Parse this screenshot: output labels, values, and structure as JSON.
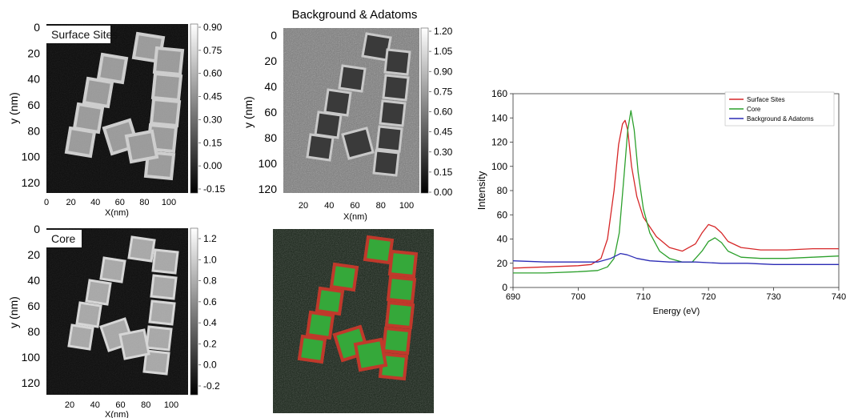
{
  "panels": {
    "surface": {
      "title": "Surface Sites",
      "xlabel": "X(nm)",
      "ylabel": "y (nm)",
      "xticks": [
        "0",
        "20",
        "40",
        "60",
        "80",
        "100"
      ],
      "yticks": [
        "0",
        "20",
        "40",
        "60",
        "80",
        "100",
        "120"
      ],
      "colorbar_ticks": [
        "0.90",
        "0.75",
        "0.60",
        "0.45",
        "0.30",
        "0.15",
        "0.00",
        "-0.15"
      ]
    },
    "background": {
      "title": "Background & Adatoms",
      "xlabel": "X(nm)",
      "ylabel": "y (nm)",
      "xticks": [
        "20",
        "40",
        "60",
        "80",
        "100"
      ],
      "yticks": [
        "0",
        "20",
        "40",
        "60",
        "80",
        "100",
        "120"
      ],
      "colorbar_ticks": [
        "1.20",
        "1.05",
        "0.90",
        "0.75",
        "0.60",
        "0.45",
        "0.30",
        "0.15",
        "0.00"
      ]
    },
    "core": {
      "title": "Core",
      "xlabel": "X(nm)",
      "ylabel": "y (nm)",
      "xticks": [
        "20",
        "40",
        "60",
        "80",
        "100"
      ],
      "yticks": [
        "0",
        "20",
        "40",
        "60",
        "80",
        "100",
        "120"
      ],
      "colorbar_ticks": [
        "1.2",
        "1.0",
        "0.8",
        "0.6",
        "0.4",
        "0.2",
        "0.0",
        "-0.2"
      ]
    }
  },
  "chart_data": {
    "type": "line",
    "xlabel": "Energy (eV)",
    "ylabel": "Intensity",
    "xlim": [
      690,
      740
    ],
    "ylim": [
      0,
      160
    ],
    "xticks": [
      "690",
      "700",
      "710",
      "720",
      "730",
      "740"
    ],
    "yticks": [
      "0",
      "20",
      "40",
      "60",
      "80",
      "100",
      "120",
      "140",
      "160"
    ],
    "legend_position": "top-right",
    "series": [
      {
        "name": "Surface Sites",
        "color": "#d62728",
        "x": [
          690,
          695,
          700,
          702,
          703.5,
          704.5,
          705.5,
          706.2,
          706.8,
          707.2,
          707.6,
          708.2,
          709,
          710,
          712,
          714,
          716,
          718,
          719,
          720,
          721,
          722,
          723,
          725,
          728,
          732,
          736,
          740
        ],
        "y": [
          16,
          17,
          18,
          19,
          24,
          40,
          80,
          118,
          135,
          138,
          130,
          100,
          75,
          58,
          42,
          33,
          30,
          36,
          45,
          52,
          50,
          45,
          38,
          33,
          31,
          31,
          32,
          32
        ]
      },
      {
        "name": "Core",
        "color": "#2ca02c",
        "x": [
          690,
          695,
          700,
          703,
          704.5,
          705.5,
          706.3,
          707,
          707.6,
          708.1,
          708.6,
          709.2,
          710,
          711,
          712.5,
          714,
          716,
          717.5,
          719,
          720,
          721,
          722,
          723,
          725,
          728,
          732,
          736,
          740
        ],
        "y": [
          12,
          12,
          13,
          14,
          17,
          24,
          45,
          90,
          130,
          146,
          130,
          95,
          65,
          45,
          30,
          24,
          21,
          21,
          30,
          38,
          41,
          37,
          30,
          25,
          24,
          24,
          25,
          26
        ]
      },
      {
        "name": "Background & Adatoms",
        "color": "#2b2bb5",
        "x": [
          690,
          695,
          700,
          703,
          705,
          706.5,
          707.5,
          709,
          711,
          714,
          718,
          722,
          726,
          730,
          735,
          740
        ],
        "y": [
          22,
          21,
          21,
          21,
          24,
          28,
          27,
          24,
          22,
          21,
          21,
          20,
          20,
          19,
          19,
          19
        ]
      }
    ]
  }
}
